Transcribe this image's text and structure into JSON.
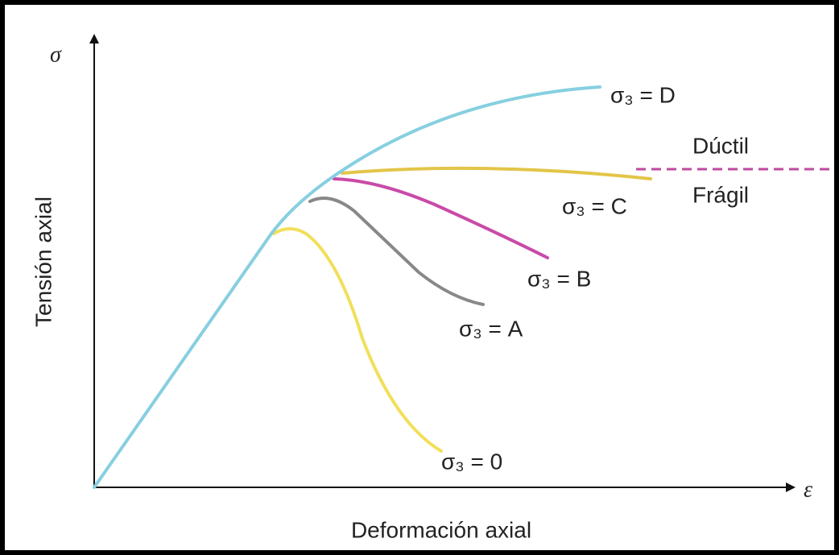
{
  "axes": {
    "y_symbol": "σ",
    "x_symbol": "ε",
    "y_label": "Tensión axial",
    "x_label": "Deformación axial"
  },
  "curves": [
    {
      "label": "σ₃ = D"
    },
    {
      "label": "σ₃ = C"
    },
    {
      "label": "σ₃ = B"
    },
    {
      "label": "σ₃ = A"
    },
    {
      "label": "σ₃ = 0"
    }
  ],
  "regions": {
    "upper": "Dúctil",
    "lower": "Frágil"
  }
}
